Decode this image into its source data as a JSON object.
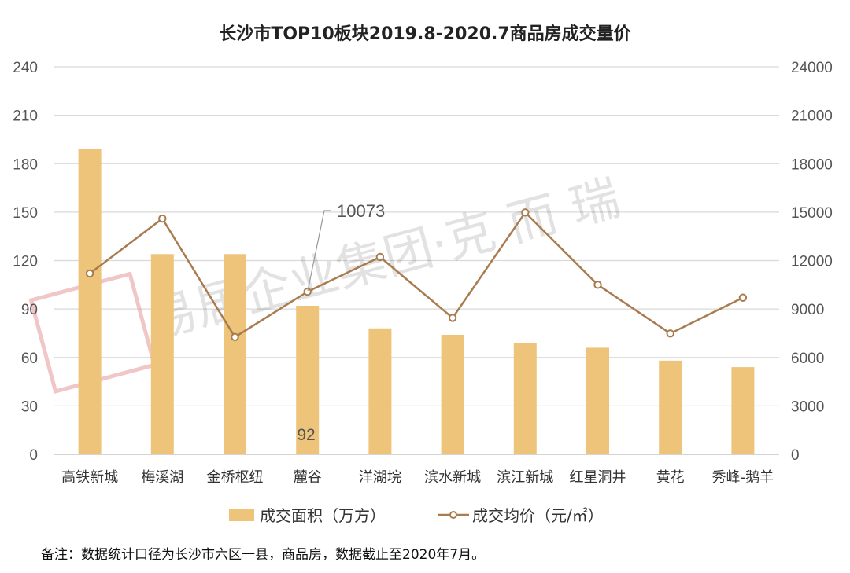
{
  "chart_data": {
    "type": "bar",
    "title": "长沙市TOP10板块2019.8-2020.7商品房成交量价",
    "categories": [
      "高铁新城",
      "梅溪湖",
      "金桥枢纽",
      "麓谷",
      "洋湖垸",
      "滨水新城",
      "滨江新城",
      "红星洞井",
      "黄花",
      "秀峰-鹅羊"
    ],
    "series": [
      {
        "name": "成交面积（万方）",
        "type": "bar",
        "axis": "left",
        "color": "#EDC47A",
        "values": [
          189,
          124,
          124,
          92,
          78,
          74,
          69,
          66,
          58,
          54
        ]
      },
      {
        "name": "成交均价（元/㎡）",
        "type": "line",
        "axis": "right",
        "color": "#A87C4F",
        "values": [
          11200,
          14600,
          7260,
          10073,
          12220,
          8450,
          14980,
          10500,
          7480,
          9700
        ]
      }
    ],
    "left_axis": {
      "ylim": [
        0,
        240
      ],
      "ticks": [
        "0",
        "30",
        "60",
        "90",
        "120",
        "150",
        "180",
        "210",
        "240"
      ]
    },
    "right_axis": {
      "ylim": [
        0,
        24000
      ],
      "ticks": [
        "0",
        "3000",
        "6000",
        "9000",
        "12000",
        "15000",
        "18000",
        "21000",
        "24000"
      ]
    },
    "grid": true,
    "legend_position": "bottom",
    "data_labels": [
      {
        "series": 0,
        "category": "麓谷",
        "text": "92"
      },
      {
        "series": 1,
        "category": "麓谷",
        "text": "10073"
      }
    ],
    "note": "备注：数据统计口径为长沙市六区一县，商品房，数据截止至2020年7月。",
    "watermark": "易居企业集团·克 而 瑞"
  }
}
